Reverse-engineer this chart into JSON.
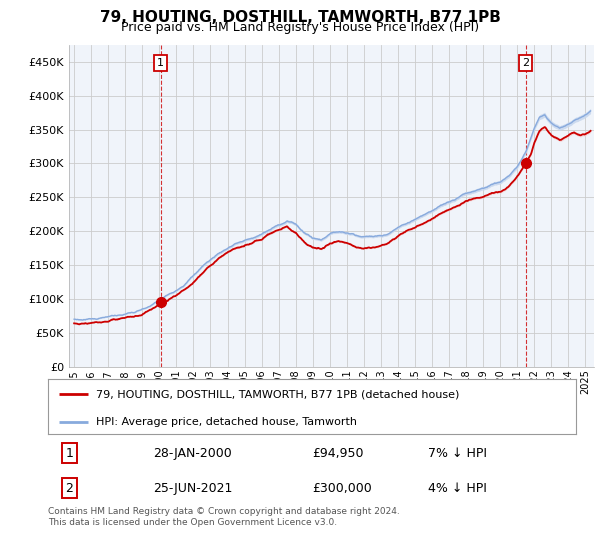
{
  "title": "79, HOUTING, DOSTHILL, TAMWORTH, B77 1PB",
  "subtitle": "Price paid vs. HM Land Registry's House Price Index (HPI)",
  "title_fontsize": 11,
  "subtitle_fontsize": 9,
  "ylabel_ticks": [
    "£0",
    "£50K",
    "£100K",
    "£150K",
    "£200K",
    "£250K",
    "£300K",
    "£350K",
    "£400K",
    "£450K"
  ],
  "ytick_values": [
    0,
    50000,
    100000,
    150000,
    200000,
    250000,
    300000,
    350000,
    400000,
    450000
  ],
  "ylim": [
    0,
    475000
  ],
  "xlim_start": 1994.7,
  "xlim_end": 2025.5,
  "sale1_x": 2000.07,
  "sale1_y": 94950,
  "sale2_x": 2021.49,
  "sale2_y": 300000,
  "legend_line1": "79, HOUTING, DOSTHILL, TAMWORTH, B77 1PB (detached house)",
  "legend_line2": "HPI: Average price, detached house, Tamworth",
  "table_row1_num": "1",
  "table_row1_date": "28-JAN-2000",
  "table_row1_price": "£94,950",
  "table_row1_hpi": "7% ↓ HPI",
  "table_row2_num": "2",
  "table_row2_date": "25-JUN-2021",
  "table_row2_price": "£300,000",
  "table_row2_hpi": "4% ↓ HPI",
  "footnote": "Contains HM Land Registry data © Crown copyright and database right 2024.\nThis data is licensed under the Open Government Licence v3.0.",
  "red_color": "#cc0000",
  "blue_color": "#88aadd",
  "blue_fill": "#c8d8ee",
  "red_fill": "#f0c0c0",
  "background_color": "#ffffff",
  "grid_color": "#cccccc",
  "hpi_anchors": [
    [
      1995.0,
      70000
    ],
    [
      1995.5,
      69500
    ],
    [
      1996.0,
      71000
    ],
    [
      1996.5,
      72000
    ],
    [
      1997.0,
      74000
    ],
    [
      1997.5,
      76000
    ],
    [
      1998.0,
      78000
    ],
    [
      1998.5,
      80000
    ],
    [
      1999.0,
      84000
    ],
    [
      1999.5,
      90000
    ],
    [
      2000.0,
      98000
    ],
    [
      2000.5,
      106000
    ],
    [
      2001.0,
      114000
    ],
    [
      2001.5,
      122000
    ],
    [
      2002.0,
      134000
    ],
    [
      2002.5,
      148000
    ],
    [
      2003.0,
      158000
    ],
    [
      2003.5,
      168000
    ],
    [
      2004.0,
      175000
    ],
    [
      2004.5,
      182000
    ],
    [
      2005.0,
      186000
    ],
    [
      2005.5,
      190000
    ],
    [
      2006.0,
      196000
    ],
    [
      2006.5,
      202000
    ],
    [
      2007.0,
      210000
    ],
    [
      2007.5,
      215000
    ],
    [
      2008.0,
      210000
    ],
    [
      2008.5,
      198000
    ],
    [
      2009.0,
      190000
    ],
    [
      2009.5,
      188000
    ],
    [
      2010.0,
      196000
    ],
    [
      2010.5,
      200000
    ],
    [
      2011.0,
      198000
    ],
    [
      2011.5,
      195000
    ],
    [
      2012.0,
      192000
    ],
    [
      2012.5,
      192000
    ],
    [
      2013.0,
      194000
    ],
    [
      2013.5,
      198000
    ],
    [
      2014.0,
      205000
    ],
    [
      2014.5,
      212000
    ],
    [
      2015.0,
      218000
    ],
    [
      2015.5,
      224000
    ],
    [
      2016.0,
      230000
    ],
    [
      2016.5,
      238000
    ],
    [
      2017.0,
      244000
    ],
    [
      2017.5,
      250000
    ],
    [
      2018.0,
      256000
    ],
    [
      2018.5,
      260000
    ],
    [
      2019.0,
      264000
    ],
    [
      2019.5,
      268000
    ],
    [
      2020.0,
      272000
    ],
    [
      2020.5,
      280000
    ],
    [
      2021.0,
      296000
    ],
    [
      2021.5,
      316000
    ],
    [
      2022.0,
      352000
    ],
    [
      2022.3,
      368000
    ],
    [
      2022.6,
      372000
    ],
    [
      2022.9,
      362000
    ],
    [
      2023.2,
      355000
    ],
    [
      2023.5,
      352000
    ],
    [
      2023.8,
      356000
    ],
    [
      2024.1,
      360000
    ],
    [
      2024.4,
      365000
    ],
    [
      2024.7,
      368000
    ],
    [
      2025.0,
      372000
    ],
    [
      2025.3,
      378000
    ]
  ],
  "prop_anchors": [
    [
      1995.0,
      64000
    ],
    [
      1995.5,
      63500
    ],
    [
      1996.0,
      65000
    ],
    [
      1996.5,
      66500
    ],
    [
      1997.0,
      68000
    ],
    [
      1997.5,
      70000
    ],
    [
      1998.0,
      72000
    ],
    [
      1998.5,
      74000
    ],
    [
      1999.0,
      78000
    ],
    [
      1999.5,
      84000
    ],
    [
      2000.0,
      92000
    ],
    [
      2000.07,
      94950
    ],
    [
      2000.5,
      98000
    ],
    [
      2001.0,
      106000
    ],
    [
      2001.5,
      114000
    ],
    [
      2002.0,
      124000
    ],
    [
      2002.5,
      138000
    ],
    [
      2003.0,
      150000
    ],
    [
      2003.5,
      160000
    ],
    [
      2004.0,
      168000
    ],
    [
      2004.5,
      175000
    ],
    [
      2005.0,
      178000
    ],
    [
      2005.5,
      182000
    ],
    [
      2006.0,
      188000
    ],
    [
      2006.5,
      196000
    ],
    [
      2007.0,
      202000
    ],
    [
      2007.5,
      206000
    ],
    [
      2008.0,
      198000
    ],
    [
      2008.5,
      184000
    ],
    [
      2009.0,
      176000
    ],
    [
      2009.5,
      174000
    ],
    [
      2010.0,
      182000
    ],
    [
      2010.5,
      186000
    ],
    [
      2011.0,
      182000
    ],
    [
      2011.5,
      178000
    ],
    [
      2012.0,
      175000
    ],
    [
      2012.5,
      175000
    ],
    [
      2013.0,
      178000
    ],
    [
      2013.5,
      184000
    ],
    [
      2014.0,
      192000
    ],
    [
      2014.5,
      200000
    ],
    [
      2015.0,
      206000
    ],
    [
      2015.5,
      212000
    ],
    [
      2016.0,
      218000
    ],
    [
      2016.5,
      226000
    ],
    [
      2017.0,
      232000
    ],
    [
      2017.5,
      238000
    ],
    [
      2018.0,
      244000
    ],
    [
      2018.5,
      248000
    ],
    [
      2019.0,
      252000
    ],
    [
      2019.5,
      256000
    ],
    [
      2020.0,
      258000
    ],
    [
      2020.5,
      265000
    ],
    [
      2021.0,
      280000
    ],
    [
      2021.49,
      300000
    ],
    [
      2021.8,
      312000
    ],
    [
      2022.0,
      330000
    ],
    [
      2022.3,
      348000
    ],
    [
      2022.6,
      354000
    ],
    [
      2022.9,
      345000
    ],
    [
      2023.2,
      338000
    ],
    [
      2023.5,
      334000
    ],
    [
      2023.8,
      338000
    ],
    [
      2024.1,
      342000
    ],
    [
      2024.4,
      345000
    ],
    [
      2024.7,
      342000
    ],
    [
      2025.0,
      344000
    ],
    [
      2025.3,
      348000
    ]
  ]
}
